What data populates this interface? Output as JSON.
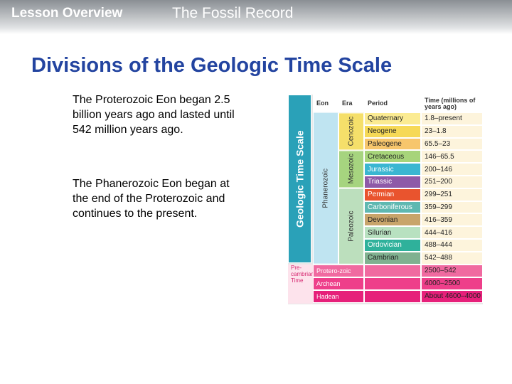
{
  "header": {
    "lesson": "Lesson Overview",
    "topic": "The Fossil Record"
  },
  "title": "Divisions of the Geologic Time Scale",
  "paragraphs": [
    "The Proterozoic Eon began 2.5 billion years ago and lasted until 542 million years ago.",
    "The Phanerozoic Eon began at the end of the Proterozoic and continues to the present."
  ],
  "table": {
    "side_label": "Geologic Time Scale",
    "columns": [
      "Eon",
      "Era",
      "Period",
      "Time (millions of years ago)"
    ],
    "eon": "Phanerozoic",
    "eras": [
      "Cenozoic",
      "Mesozoic",
      "Paleozoic"
    ],
    "periods": [
      [
        "Quaternary",
        "1.8–present"
      ],
      [
        "Neogene",
        "23–1.8"
      ],
      [
        "Paleogene",
        "65.5–23"
      ],
      [
        "Cretaceous",
        "146–65.5"
      ],
      [
        "Jurassic",
        "200–146"
      ],
      [
        "Triassic",
        "251–200"
      ],
      [
        "Permian",
        "299–251"
      ],
      [
        "Carboniferous",
        "359–299"
      ],
      [
        "Devonian",
        "416–359"
      ],
      [
        "Silurian",
        "444–416"
      ],
      [
        "Ordovician",
        "488–444"
      ],
      [
        "Cambrian",
        "542–488"
      ]
    ],
    "precambrian": {
      "label": "Pre-cambrian Time",
      "rows": [
        [
          "Protero-zoic",
          "2500–542"
        ],
        [
          "Archean",
          "4000–2500"
        ],
        [
          "Hadean",
          "About 4600–4000"
        ]
      ]
    }
  }
}
